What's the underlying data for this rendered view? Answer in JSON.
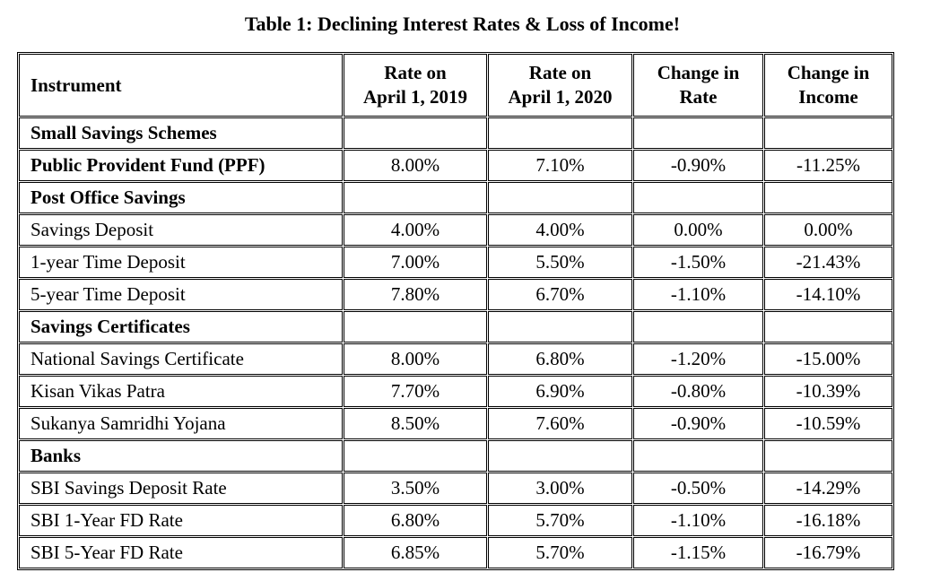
{
  "header": {
    "title": "Table 1: Declining Interest Rates & Loss of Income!"
  },
  "table": {
    "columns": [
      "Instrument",
      "Rate on\nApril 1, 2019",
      "Rate on\nApril 1, 2020",
      "Change in\nRate",
      "Change in\nIncome"
    ],
    "rows": [
      {
        "cells": [
          "Small Savings Schemes"
        ],
        "bold": true
      },
      {
        "cells": [
          "Public Provident Fund (PPF)",
          "8.00%",
          "7.10%",
          "-0.90%",
          "-11.25%"
        ],
        "bold": true
      },
      {
        "cells": [
          "Post Office Savings"
        ],
        "bold": true
      },
      {
        "cells": [
          "Savings Deposit",
          "4.00%",
          "4.00%",
          "0.00%",
          "0.00%"
        ]
      },
      {
        "cells": [
          "1-year Time Deposit",
          "7.00%",
          "5.50%",
          "-1.50%",
          "-21.43%"
        ]
      },
      {
        "cells": [
          "5-year Time Deposit",
          "7.80%",
          "6.70%",
          "-1.10%",
          "-14.10%"
        ]
      },
      {
        "cells": [
          "Savings Certificates"
        ],
        "bold": true
      },
      {
        "cells": [
          "National Savings Certificate",
          "8.00%",
          "6.80%",
          "-1.20%",
          "-15.00%"
        ]
      },
      {
        "cells": [
          "Kisan Vikas Patra",
          "7.70%",
          "6.90%",
          "-0.80%",
          "-10.39%"
        ]
      },
      {
        "cells": [
          "Sukanya Samridhi Yojana",
          "8.50%",
          "7.60%",
          "-0.90%",
          "-10.59%"
        ]
      },
      {
        "cells": [
          "Banks"
        ],
        "bold": true
      },
      {
        "cells": [
          "SBI Savings Deposit Rate",
          "3.50%",
          "3.00%",
          "-0.50%",
          "-14.29%"
        ]
      },
      {
        "cells": [
          "SBI 1-Year FD Rate",
          "6.80%",
          "5.70%",
          "-1.10%",
          "-16.18%"
        ]
      },
      {
        "cells": [
          "SBI 5-Year FD Rate",
          "6.85%",
          "5.70%",
          "-1.15%",
          "-16.79%"
        ]
      }
    ]
  }
}
